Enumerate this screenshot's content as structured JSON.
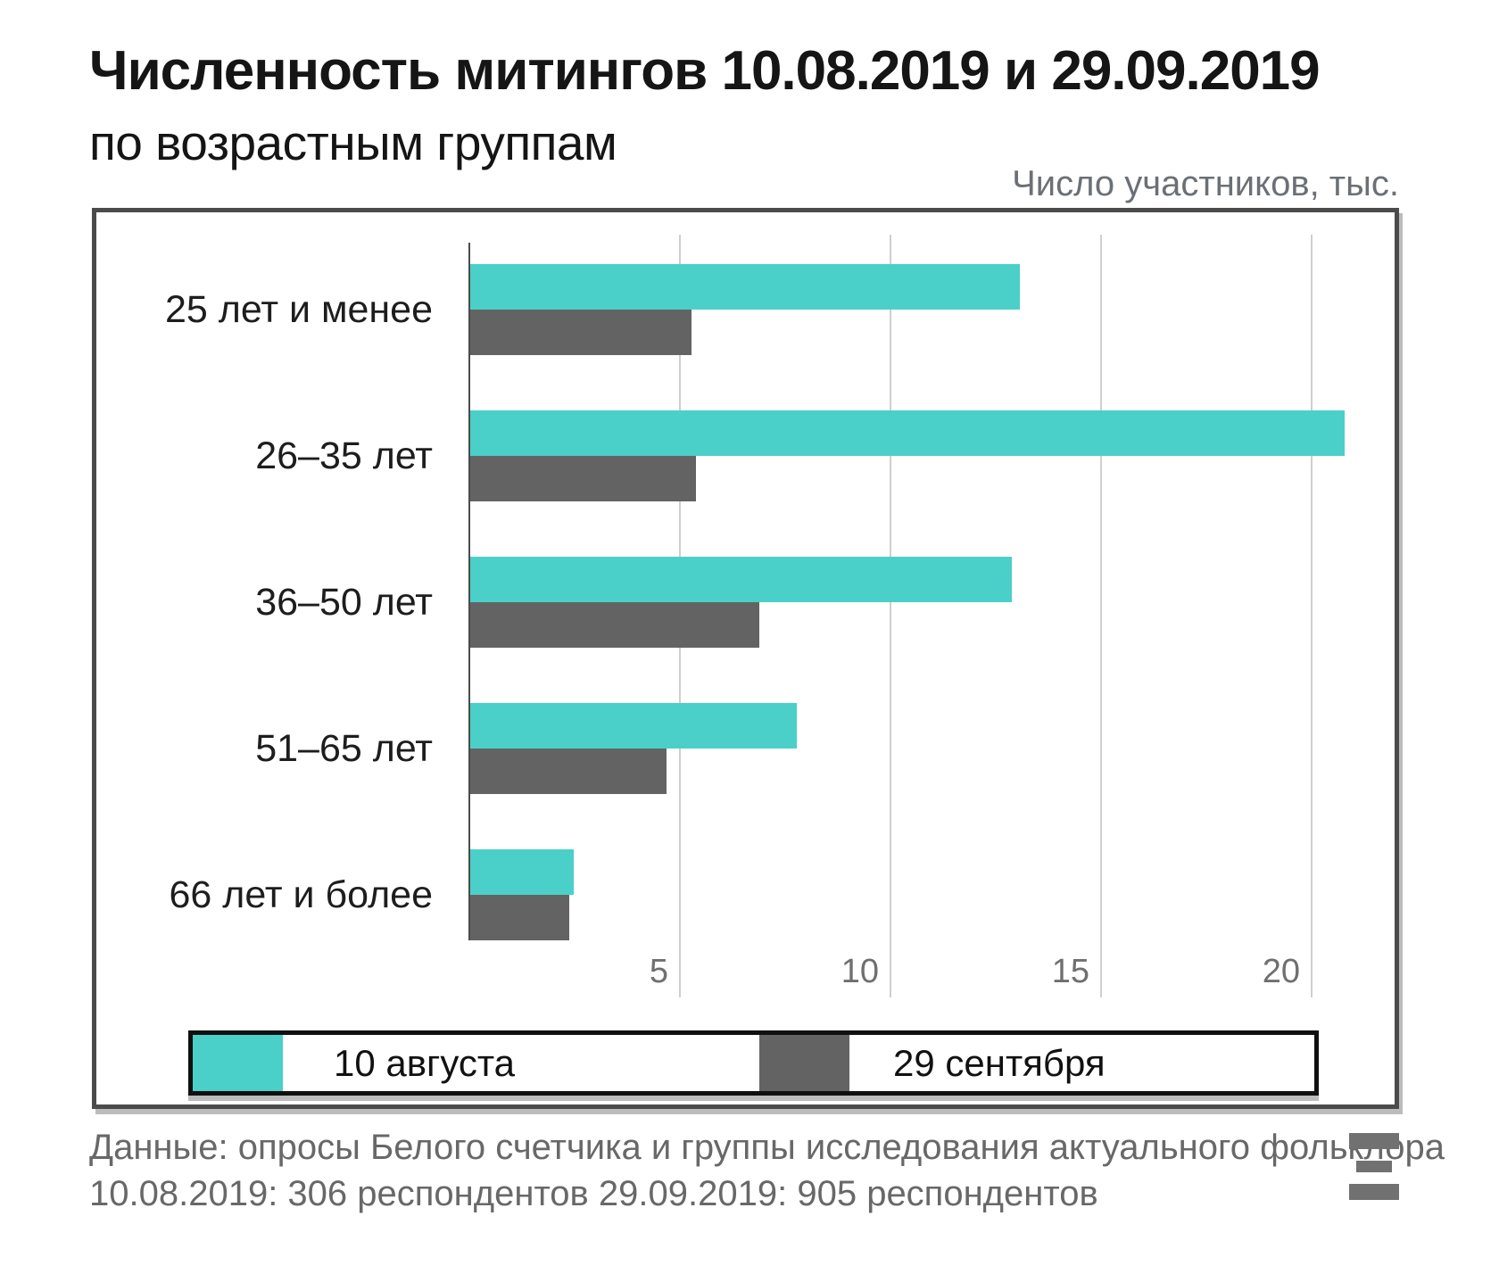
{
  "title": "Численность митингов 10.08.2019 и 29.09.2019",
  "subtitle": "по возрастным группам",
  "axis_note": "Число участников, тыс.",
  "chart_data": {
    "type": "bar",
    "orientation": "horizontal",
    "title": "Численность митингов 10.08.2019 и 29.09.2019 по возрастным группам",
    "xlabel": "Число участников, тыс.",
    "categories": [
      "25 лет и менее",
      "26–35 лет",
      "36–50 лет",
      "51–65 лет",
      "66 лет и более"
    ],
    "series": [
      {
        "name": "10 августа",
        "color": "#4ad0c8",
        "values": [
          13.1,
          20.8,
          12.9,
          7.8,
          2.5
        ]
      },
      {
        "name": "29 сентября",
        "color": "#636363",
        "values": [
          5.3,
          5.4,
          6.9,
          4.7,
          2.4
        ]
      }
    ],
    "x_ticks": [
      5,
      10,
      15,
      20
    ],
    "xlim": [
      0,
      22
    ],
    "grid": true,
    "legend_position": "bottom"
  },
  "legend": {
    "items": [
      {
        "label": "10 августа",
        "color": "#4ad0c8"
      },
      {
        "label": "29 сентября",
        "color": "#636363"
      }
    ]
  },
  "footer": {
    "line1": "Данные: опросы Белого счетчика и группы исследования актуального фольклора",
    "line2": "10.08.2019: 306 респондентов 29.09.2019: 905 респондентов"
  },
  "colors": {
    "series_aug10": "#4ad0c8",
    "series_sep29": "#636363",
    "frame_border": "#4b4b4b",
    "gridline": "#cfcfcf",
    "text_muted": "#6b7076"
  },
  "logo": "mediazona-logo"
}
